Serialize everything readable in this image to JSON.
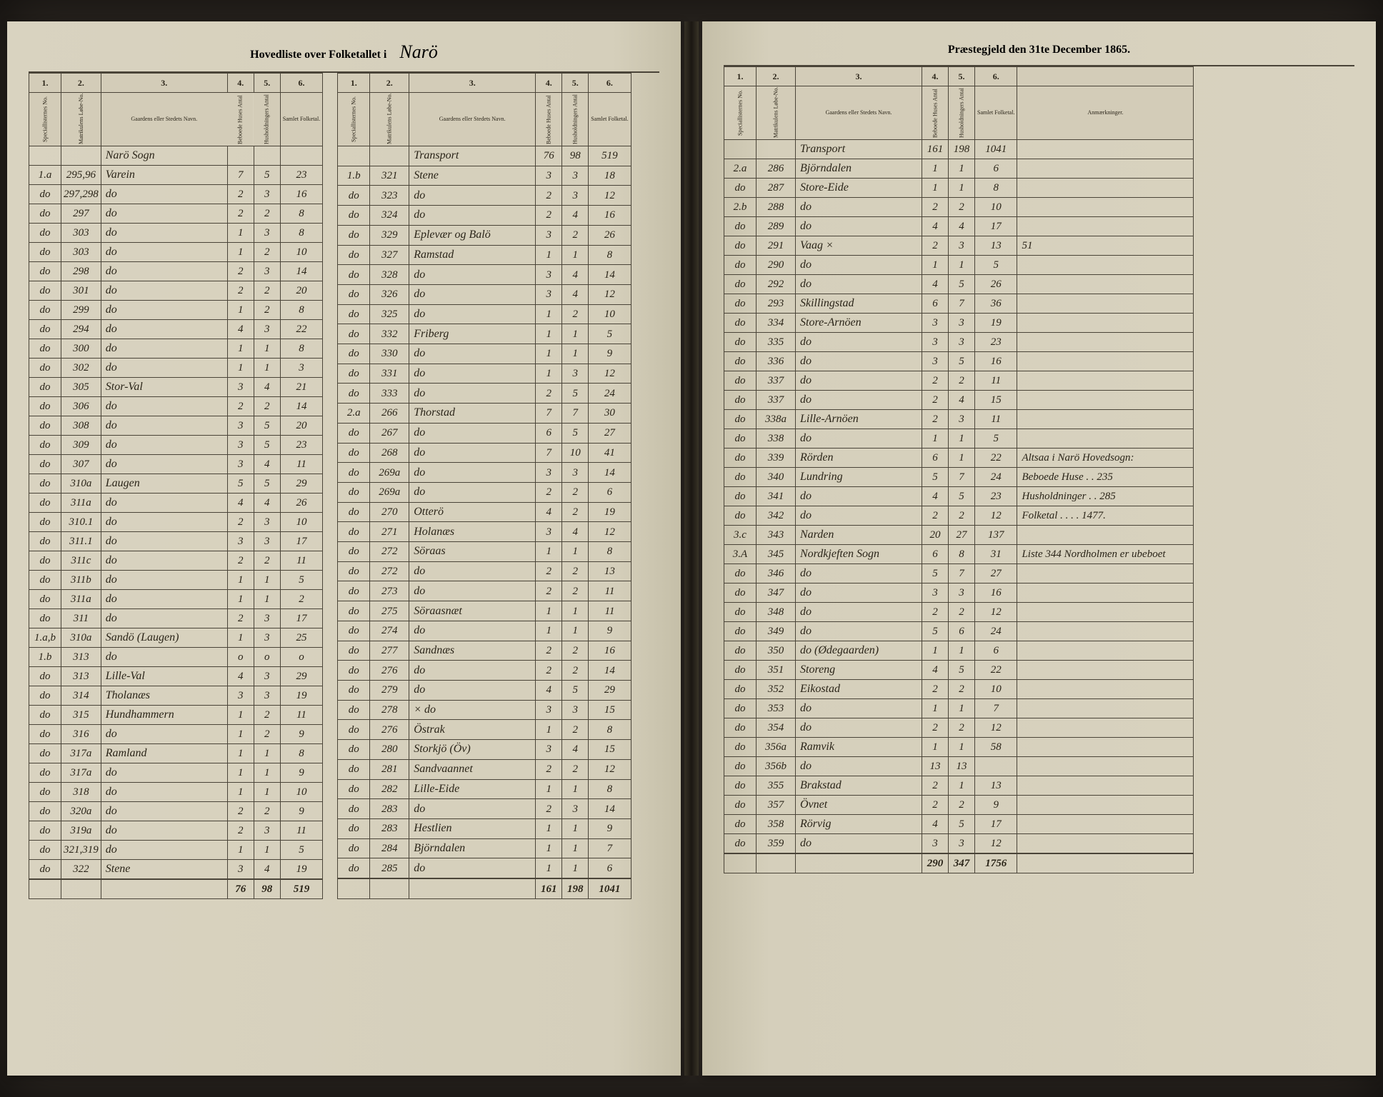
{
  "header": {
    "left_printed": "Hovedliste over Folketallet i",
    "parish_script": "Narö",
    "right_printed": "Præstegjeld den 31te December 1865."
  },
  "column_numbers": [
    "1.",
    "2.",
    "3.",
    "4.",
    "5.",
    "6."
  ],
  "column_headers": {
    "c1": "Speciallisternes No.",
    "c2": "Matrikulens Løbe-No.",
    "c3": "Gaardens eller Stedets Navn.",
    "c4": "Beboede Huses Antal",
    "c5": "Husholdningers Antal",
    "c6": "Samlet Folketal.",
    "notes": "Anmærkninger."
  },
  "left_table_a": {
    "parish_note": "Narö Sogn",
    "rows": [
      [
        "1.a",
        "295,96",
        "Varein",
        "7",
        "5",
        "23"
      ],
      [
        "do",
        "297,298",
        "do",
        "2",
        "3",
        "16"
      ],
      [
        "do",
        "297",
        "do",
        "2",
        "2",
        "8"
      ],
      [
        "do",
        "303",
        "do",
        "1",
        "3",
        "8"
      ],
      [
        "do",
        "303",
        "do",
        "1",
        "2",
        "10"
      ],
      [
        "do",
        "298",
        "do",
        "2",
        "3",
        "14"
      ],
      [
        "do",
        "301",
        "do",
        "2",
        "2",
        "20"
      ],
      [
        "do",
        "299",
        "do",
        "1",
        "2",
        "8"
      ],
      [
        "do",
        "294",
        "do",
        "4",
        "3",
        "22"
      ],
      [
        "do",
        "300",
        "do",
        "1",
        "1",
        "8"
      ],
      [
        "do",
        "302",
        "do",
        "1",
        "1",
        "3"
      ],
      [
        "do",
        "305",
        "Stor-Val",
        "3",
        "4",
        "21"
      ],
      [
        "do",
        "306",
        "do",
        "2",
        "2",
        "14"
      ],
      [
        "do",
        "308",
        "do",
        "3",
        "5",
        "20"
      ],
      [
        "do",
        "309",
        "do",
        "3",
        "5",
        "23"
      ],
      [
        "do",
        "307",
        "do",
        "3",
        "4",
        "11"
      ],
      [
        "do",
        "310a",
        "Laugen",
        "5",
        "5",
        "29"
      ],
      [
        "do",
        "311a",
        "do",
        "4",
        "4",
        "26"
      ],
      [
        "do",
        "310.1",
        "do",
        "2",
        "3",
        "10"
      ],
      [
        "do",
        "311.1",
        "do",
        "3",
        "3",
        "17"
      ],
      [
        "do",
        "311c",
        "do",
        "2",
        "2",
        "11"
      ],
      [
        "do",
        "311b",
        "do",
        "1",
        "1",
        "5"
      ],
      [
        "do",
        "311a",
        "do",
        "1",
        "1",
        "2"
      ],
      [
        "do",
        "311",
        "do",
        "2",
        "3",
        "17"
      ],
      [
        "1.a,b",
        "310a",
        "Sandö (Laugen)",
        "1",
        "3",
        "25"
      ],
      [
        "1.b",
        "313",
        "do",
        "o",
        "o",
        "o"
      ],
      [
        "do",
        "313",
        "Lille-Val",
        "4",
        "3",
        "29"
      ],
      [
        "do",
        "314",
        "Tholanæs",
        "3",
        "3",
        "19"
      ],
      [
        "do",
        "315",
        "Hundhammern",
        "1",
        "2",
        "11"
      ],
      [
        "do",
        "316",
        "do",
        "1",
        "2",
        "9"
      ],
      [
        "do",
        "317a",
        "Ramland",
        "1",
        "1",
        "8"
      ],
      [
        "do",
        "317a",
        "do",
        "1",
        "1",
        "9"
      ],
      [
        "do",
        "318",
        "do",
        "1",
        "1",
        "10"
      ],
      [
        "do",
        "320a",
        "do",
        "2",
        "2",
        "9"
      ],
      [
        "do",
        "319a",
        "do",
        "2",
        "3",
        "11"
      ],
      [
        "do",
        "321,319",
        "do",
        "1",
        "1",
        "5"
      ],
      [
        "do",
        "322",
        "Stene",
        "3",
        "4",
        "19"
      ]
    ],
    "totals": [
      "",
      "",
      "",
      "76",
      "98",
      "519"
    ]
  },
  "left_table_b": {
    "rows": [
      [
        "",
        "",
        "Transport",
        "76",
        "98",
        "519"
      ],
      [
        "1.b",
        "321",
        "Stene",
        "3",
        "3",
        "18"
      ],
      [
        "do",
        "323",
        "do",
        "2",
        "3",
        "12"
      ],
      [
        "do",
        "324",
        "do",
        "2",
        "4",
        "16"
      ],
      [
        "do",
        "329",
        "Eplevær og Balö",
        "3",
        "2",
        "26"
      ],
      [
        "do",
        "327",
        "Ramstad",
        "1",
        "1",
        "8"
      ],
      [
        "do",
        "328",
        "do",
        "3",
        "4",
        "14"
      ],
      [
        "do",
        "326",
        "do",
        "3",
        "4",
        "12"
      ],
      [
        "do",
        "325",
        "do",
        "1",
        "2",
        "10"
      ],
      [
        "do",
        "332",
        "Friberg",
        "1",
        "1",
        "5"
      ],
      [
        "do",
        "330",
        "do",
        "1",
        "1",
        "9"
      ],
      [
        "do",
        "331",
        "do",
        "1",
        "3",
        "12"
      ],
      [
        "do",
        "333",
        "do",
        "2",
        "5",
        "24"
      ],
      [
        "2.a",
        "266",
        "Thorstad",
        "7",
        "7",
        "30"
      ],
      [
        "do",
        "267",
        "do",
        "6",
        "5",
        "27"
      ],
      [
        "do",
        "268",
        "do",
        "7",
        "10",
        "41"
      ],
      [
        "do",
        "269a",
        "do",
        "3",
        "3",
        "14"
      ],
      [
        "do",
        "269a",
        "do",
        "2",
        "2",
        "6"
      ],
      [
        "do",
        "270",
        "Otterö",
        "4",
        "2",
        "19"
      ],
      [
        "do",
        "271",
        "Holanæs",
        "3",
        "4",
        "12"
      ],
      [
        "do",
        "272",
        "Söraas",
        "1",
        "1",
        "8"
      ],
      [
        "do",
        "272",
        "do",
        "2",
        "2",
        "13"
      ],
      [
        "do",
        "273",
        "do",
        "2",
        "2",
        "11"
      ],
      [
        "do",
        "275",
        "Söraasnæt",
        "1",
        "1",
        "11"
      ],
      [
        "do",
        "274",
        "do",
        "1",
        "1",
        "9"
      ],
      [
        "do",
        "277",
        "Sandnæs",
        "2",
        "2",
        "16"
      ],
      [
        "do",
        "276",
        "do",
        "2",
        "2",
        "14"
      ],
      [
        "do",
        "279",
        "do",
        "4",
        "5",
        "29"
      ],
      [
        "do",
        "278",
        "×  do",
        "3",
        "3",
        "15"
      ],
      [
        "do",
        "276",
        "Östrak",
        "1",
        "2",
        "8"
      ],
      [
        "do",
        "280",
        "Storkjö (Öv)",
        "3",
        "4",
        "15"
      ],
      [
        "do",
        "281",
        "Sandvaannet",
        "2",
        "2",
        "12"
      ],
      [
        "do",
        "282",
        "Lille-Eide",
        "1",
        "1",
        "8"
      ],
      [
        "do",
        "283",
        "do",
        "2",
        "3",
        "14"
      ],
      [
        "do",
        "283",
        "Hestlien",
        "1",
        "1",
        "9"
      ],
      [
        "do",
        "284",
        "Björndalen",
        "1",
        "1",
        "7"
      ],
      [
        "do",
        "285",
        "do",
        "1",
        "1",
        "6"
      ]
    ],
    "totals": [
      "",
      "",
      "",
      "161",
      "198",
      "1041"
    ]
  },
  "right_table": {
    "rows": [
      [
        "",
        "",
        "Transport",
        "161",
        "198",
        "1041",
        ""
      ],
      [
        "2.a",
        "286",
        "Björndalen",
        "1",
        "1",
        "6",
        ""
      ],
      [
        "do",
        "287",
        "Store-Eide",
        "1",
        "1",
        "8",
        ""
      ],
      [
        "2.b",
        "288",
        "do",
        "2",
        "2",
        "10",
        ""
      ],
      [
        "do",
        "289",
        "do",
        "4",
        "4",
        "17",
        ""
      ],
      [
        "do",
        "291",
        "Vaag    ×",
        "2",
        "3",
        "13",
        "51"
      ],
      [
        "do",
        "290",
        "do",
        "1",
        "1",
        "5",
        ""
      ],
      [
        "do",
        "292",
        "do",
        "4",
        "5",
        "26",
        ""
      ],
      [
        "do",
        "293",
        "Skillingstad",
        "6",
        "7",
        "36",
        ""
      ],
      [
        "do",
        "334",
        "Store-Arnöen",
        "3",
        "3",
        "19",
        ""
      ],
      [
        "do",
        "335",
        "do",
        "3",
        "3",
        "23",
        ""
      ],
      [
        "do",
        "336",
        "do",
        "3",
        "5",
        "16",
        ""
      ],
      [
        "do",
        "337",
        "do",
        "2",
        "2",
        "11",
        ""
      ],
      [
        "do",
        "337",
        "do",
        "2",
        "4",
        "15",
        ""
      ],
      [
        "do",
        "338a",
        "Lille-Arnöen",
        "2",
        "3",
        "11",
        ""
      ],
      [
        "do",
        "338",
        "do",
        "1",
        "1",
        "5",
        ""
      ],
      [
        "do",
        "339",
        "Rörden",
        "6",
        "1",
        "22",
        "Altsaa i Narö Hovedsogn:"
      ],
      [
        "do",
        "340",
        "Lundring",
        "5",
        "7",
        "24",
        "Beboede Huse . . 235"
      ],
      [
        "do",
        "341",
        "do",
        "4",
        "5",
        "23",
        "Husholdninger . . 285"
      ],
      [
        "do",
        "342",
        "do",
        "2",
        "2",
        "12",
        "Folketal . . . . 1477."
      ],
      [
        "3.c",
        "343",
        "Narden",
        "20",
        "27",
        "137",
        ""
      ],
      [
        "3.A",
        "345",
        "Nordkjeften Sogn",
        "6",
        "8",
        "31",
        "Liste 344 Nordholmen er ubeboet"
      ],
      [
        "do",
        "346",
        "do",
        "5",
        "7",
        "27",
        ""
      ],
      [
        "do",
        "347",
        "do",
        "3",
        "3",
        "16",
        ""
      ],
      [
        "do",
        "348",
        "do",
        "2",
        "2",
        "12",
        ""
      ],
      [
        "do",
        "349",
        "do",
        "5",
        "6",
        "24",
        ""
      ],
      [
        "do",
        "350",
        "do (Ødegaarden)",
        "1",
        "1",
        "6",
        ""
      ],
      [
        "do",
        "351",
        "Storeng",
        "4",
        "5",
        "22",
        ""
      ],
      [
        "do",
        "352",
        "Eikostad",
        "2",
        "2",
        "10",
        ""
      ],
      [
        "do",
        "353",
        "do",
        "1",
        "1",
        "7",
        ""
      ],
      [
        "do",
        "354",
        "do",
        "2",
        "2",
        "12",
        ""
      ],
      [
        "do",
        "356a",
        "Ramvik",
        "1",
        "1",
        "58",
        ""
      ],
      [
        "do",
        "356b",
        "do",
        "13",
        "13",
        "",
        ""
      ],
      [
        "do",
        "355",
        "Brakstad",
        "2",
        "1",
        "13",
        ""
      ],
      [
        "do",
        "357",
        "Övnet",
        "2",
        "2",
        "9",
        ""
      ],
      [
        "do",
        "358",
        "Rörvig",
        "4",
        "5",
        "17",
        ""
      ],
      [
        "do",
        "359",
        "do",
        "3",
        "3",
        "12",
        ""
      ]
    ],
    "totals": [
      "",
      "",
      "",
      "290",
      "347",
      "1756",
      ""
    ]
  },
  "colors": {
    "page_bg": "#d9d3c0",
    "ink": "#2a2418",
    "rule": "#4a4438"
  }
}
